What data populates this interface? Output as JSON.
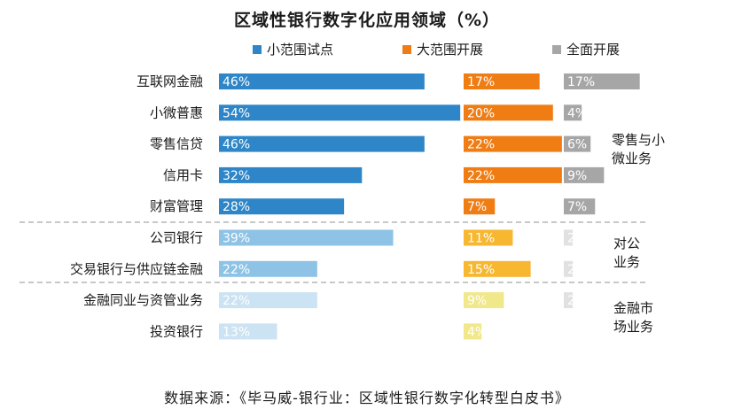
{
  "chart_data": {
    "type": "bar",
    "title": "区域性银行数字化应用领域（%）",
    "categories": [
      "互联网金融",
      "小微普惠",
      "零售信贷",
      "信用卡",
      "财富管理",
      "公司银行",
      "交易银行与供应链金融",
      "金融同业与资管业务",
      "投资银行"
    ],
    "series": [
      {
        "name": "小范围试点",
        "values": [
          46,
          54,
          46,
          32,
          28,
          39,
          22,
          22,
          13
        ],
        "labels": [
          "46%",
          "54%",
          "46%",
          "32%",
          "28%",
          "39%",
          "22%",
          "22%",
          "13%"
        ]
      },
      {
        "name": "大范围开展",
        "values": [
          17,
          20,
          22,
          22,
          7,
          11,
          15,
          9,
          4
        ],
        "labels": [
          "17%",
          "20%",
          "22%",
          "22%",
          "7%",
          "11%",
          "15%",
          "9%",
          "4%"
        ]
      },
      {
        "name": "全面开展",
        "values": [
          17,
          4,
          6,
          9,
          7,
          2,
          2,
          2,
          0
        ],
        "labels": [
          "17%",
          "4%",
          "6%",
          "9%",
          "7%",
          "2%",
          "2%",
          "2%",
          "0%"
        ]
      }
    ],
    "legend_position": "top",
    "groups": [
      {
        "label_lines": [
          "零售与小",
          "微业务"
        ],
        "rows": [
          0,
          1,
          2,
          3,
          4
        ]
      },
      {
        "label_lines": [
          "对公",
          "业务"
        ],
        "rows": [
          5,
          6
        ]
      },
      {
        "label_lines": [
          "金融市",
          "场业务"
        ],
        "rows": [
          7,
          8
        ]
      }
    ],
    "colors": {
      "s1": [
        "#2e86c8",
        "#2e86c8",
        "#2e86c8",
        "#2e86c8",
        "#2e86c8",
        "#8fc3e6",
        "#8fc3e6",
        "#cce3f3",
        "#cce3f3"
      ],
      "s2": [
        "#f07d14",
        "#f07d14",
        "#f07d14",
        "#f07d14",
        "#f07d14",
        "#f7b731",
        "#f7b731",
        "#f0e88a",
        "#f0e88a"
      ],
      "s3": [
        "#a6a6a6",
        "#a6a6a6",
        "#a6a6a6",
        "#a6a6a6",
        "#a6a6a6",
        "#e1e1e1",
        "#e1e1e1",
        "#e1e1e1",
        "#e1e1e1"
      ]
    }
  },
  "legend": {
    "colors": [
      "#2e86c8",
      "#f07d14",
      "#a6a6a6"
    ]
  },
  "source": "数据来源：《毕马威-银行业：区域性银行数字化转型白皮书》"
}
